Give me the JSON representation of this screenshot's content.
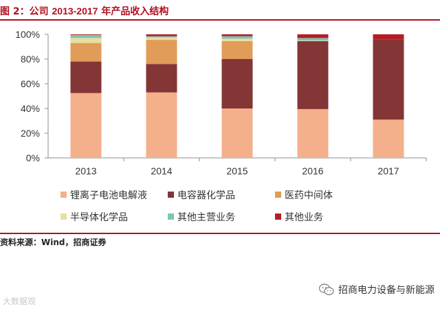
{
  "header": {
    "title_prefix": "图 2：公司",
    "title_years": "2013-2017",
    "title_suffix": "年产品收入结构"
  },
  "footer": {
    "source": "资料来源：Wind，招商证券"
  },
  "watermarks": {
    "left": "大数据观",
    "right": "招商电力设备与新能源"
  },
  "chart_data": {
    "type": "bar",
    "stacked": true,
    "categories": [
      "2013",
      "2014",
      "2015",
      "2016",
      "2017"
    ],
    "ylim": [
      0,
      100
    ],
    "yticks": [
      "0%",
      "20%",
      "40%",
      "60%",
      "80%",
      "100%"
    ],
    "grid": false,
    "legend_position": "bottom",
    "series": [
      {
        "name": "锂离子电池电解液",
        "color": "#f4b08a",
        "values": [
          52.5,
          53,
          40,
          39.5,
          31
        ]
      },
      {
        "name": "电容器化学品",
        "color": "#843535",
        "values": [
          25.5,
          23,
          40,
          55,
          65
        ]
      },
      {
        "name": "医药中间体",
        "color": "#e09c58",
        "values": [
          15,
          19.5,
          14.5,
          0,
          0
        ]
      },
      {
        "name": "半导体化学品",
        "color": "#e7df9e",
        "values": [
          4,
          2,
          2,
          0.5,
          0
        ]
      },
      {
        "name": "其他主营业务",
        "color": "#7fc4b5",
        "values": [
          2.5,
          1,
          2,
          2,
          0
        ]
      },
      {
        "name": "其他业务",
        "color": "#b71c25",
        "values": [
          0.5,
          1.5,
          1.5,
          3,
          4
        ]
      }
    ]
  }
}
